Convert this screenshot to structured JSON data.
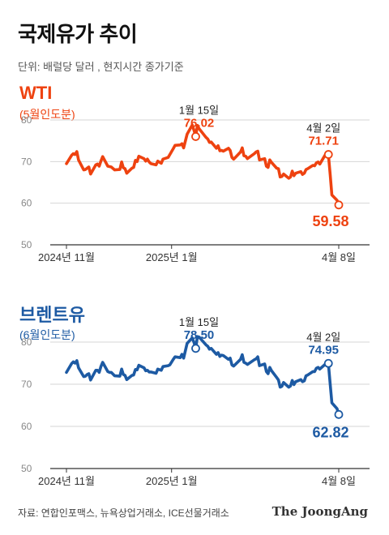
{
  "header": {
    "title": "국제유가 추이",
    "subtitle": "단위: 배럴당 달러 , 현지시간 종가기준"
  },
  "footer": {
    "source": "자료: 연합인포맥스, 뉴욕상업거래소, ICE선물거래소",
    "logo": "The JoongAng"
  },
  "colors": {
    "wti": "#ee4210",
    "brent": "#1d5aa3"
  },
  "chart_data": [
    {
      "type": "line",
      "title": "WTI",
      "subtitle": "(5월인도분)",
      "color": "#ee4210",
      "ylim": [
        50,
        80
      ],
      "yticks": [
        "80",
        "70",
        "60",
        "50"
      ],
      "xticks": [
        "2024년 11월",
        "2025년 1월",
        "4월 8일"
      ],
      "xrange": [
        "2024-11-01",
        "2025-04-08"
      ],
      "series": [
        {
          "x": [
            "2024-11-01",
            "2024-11-04",
            "2024-11-05",
            "2024-11-06",
            "2024-11-07",
            "2024-11-08",
            "2024-11-11",
            "2024-11-12",
            "2024-11-13",
            "2024-11-14",
            "2024-11-15",
            "2024-11-18",
            "2024-11-19",
            "2024-11-20",
            "2024-11-21",
            "2024-11-22",
            "2024-11-25",
            "2024-11-26",
            "2024-11-27",
            "2024-11-29",
            "2024-12-02",
            "2024-12-03",
            "2024-12-04",
            "2024-12-05",
            "2024-12-06",
            "2024-12-09",
            "2024-12-10",
            "2024-12-11",
            "2024-12-12",
            "2024-12-13",
            "2024-12-16",
            "2024-12-17",
            "2024-12-18",
            "2024-12-19",
            "2024-12-20",
            "2024-12-23",
            "2024-12-24",
            "2024-12-26",
            "2024-12-27",
            "2024-12-30",
            "2024-12-31",
            "2025-01-02",
            "2025-01-03",
            "2025-01-06",
            "2025-01-07",
            "2025-01-08",
            "2025-01-10",
            "2025-01-13",
            "2025-01-14",
            "2025-01-15",
            "2025-01-16",
            "2025-01-17",
            "2025-01-21",
            "2025-01-22",
            "2025-01-23",
            "2025-01-24",
            "2025-01-27",
            "2025-01-28",
            "2025-01-29",
            "2025-01-30",
            "2025-01-31",
            "2025-02-03",
            "2025-02-04",
            "2025-02-05",
            "2025-02-06",
            "2025-02-07",
            "2025-02-10",
            "2025-02-11",
            "2025-02-12",
            "2025-02-13",
            "2025-02-14",
            "2025-02-18",
            "2025-02-19",
            "2025-02-20",
            "2025-02-21",
            "2025-02-24",
            "2025-02-25",
            "2025-02-26",
            "2025-02-27",
            "2025-02-28",
            "2025-03-03",
            "2025-03-04",
            "2025-03-05",
            "2025-03-06",
            "2025-03-07",
            "2025-03-10",
            "2025-03-11",
            "2025-03-12",
            "2025-03-13",
            "2025-03-14",
            "2025-03-17",
            "2025-03-18",
            "2025-03-19",
            "2025-03-20",
            "2025-03-21",
            "2025-03-24",
            "2025-03-25",
            "2025-03-26",
            "2025-03-27",
            "2025-03-28",
            "2025-03-31",
            "2025-04-01",
            "2025-04-02",
            "2025-04-03",
            "2025-04-04",
            "2025-04-07",
            "2025-04-08"
          ],
          "values": [
            69.5,
            71.5,
            71.9,
            71.7,
            72.4,
            70.4,
            68.0,
            68.1,
            68.4,
            68.7,
            67.0,
            69.2,
            69.4,
            68.9,
            70.1,
            71.2,
            68.9,
            68.8,
            68.7,
            68.0,
            68.1,
            69.9,
            68.5,
            68.3,
            67.2,
            68.4,
            68.6,
            70.3,
            70.0,
            71.3,
            70.7,
            70.1,
            70.6,
            69.9,
            69.5,
            69.2,
            70.1,
            69.6,
            70.6,
            71.0,
            71.7,
            73.1,
            73.9,
            74.0,
            74.3,
            73.3,
            76.6,
            78.8,
            77.5,
            76.02,
            78.7,
            77.9,
            75.8,
            75.4,
            74.6,
            74.7,
            73.2,
            73.8,
            72.6,
            72.7,
            72.5,
            73.2,
            72.7,
            71.0,
            70.6,
            71.0,
            72.3,
            73.3,
            71.4,
            71.3,
            70.7,
            71.9,
            72.3,
            72.5,
            70.4,
            70.7,
            68.9,
            68.6,
            70.4,
            69.8,
            68.4,
            68.3,
            66.3,
            66.4,
            67.0,
            66.0,
            66.3,
            67.7,
            66.6,
            67.2,
            67.6,
            66.9,
            67.2,
            68.1,
            68.3,
            69.1,
            69.0,
            69.7,
            69.9,
            69.4,
            71.5,
            71.2,
            71.71,
            66.95,
            61.99,
            60.7,
            59.58
          ]
        }
      ],
      "annotations": [
        {
          "date": "1월 15일",
          "value": "76.02"
        },
        {
          "date": "4월 2일",
          "value": "71.71"
        },
        {
          "value": "59.58"
        }
      ]
    },
    {
      "type": "line",
      "title": "브렌트유",
      "subtitle": "(6월인도분)",
      "color": "#1d5aa3",
      "ylim": [
        50,
        80
      ],
      "yticks": [
        "80",
        "70",
        "60",
        "50"
      ],
      "xticks": [
        "2024년 11월",
        "2025년 1월",
        "4월 8일"
      ],
      "xrange": [
        "2024-11-01",
        "2025-04-08"
      ],
      "series": [
        {
          "x": [
            "2024-11-01",
            "2024-11-04",
            "2024-11-05",
            "2024-11-06",
            "2024-11-07",
            "2024-11-08",
            "2024-11-11",
            "2024-11-12",
            "2024-11-13",
            "2024-11-14",
            "2024-11-15",
            "2024-11-18",
            "2024-11-19",
            "2024-11-20",
            "2024-11-21",
            "2024-11-22",
            "2024-11-25",
            "2024-11-26",
            "2024-11-27",
            "2024-11-29",
            "2024-12-02",
            "2024-12-03",
            "2024-12-04",
            "2024-12-05",
            "2024-12-06",
            "2024-12-09",
            "2024-12-10",
            "2024-12-11",
            "2024-12-12",
            "2024-12-13",
            "2024-12-16",
            "2024-12-17",
            "2024-12-18",
            "2024-12-19",
            "2024-12-20",
            "2024-12-23",
            "2024-12-24",
            "2024-12-26",
            "2024-12-27",
            "2024-12-30",
            "2024-12-31",
            "2025-01-02",
            "2025-01-03",
            "2025-01-06",
            "2025-01-07",
            "2025-01-08",
            "2025-01-10",
            "2025-01-13",
            "2025-01-14",
            "2025-01-15",
            "2025-01-16",
            "2025-01-17",
            "2025-01-21",
            "2025-01-22",
            "2025-01-23",
            "2025-01-24",
            "2025-01-27",
            "2025-01-28",
            "2025-01-29",
            "2025-01-30",
            "2025-01-31",
            "2025-02-03",
            "2025-02-04",
            "2025-02-05",
            "2025-02-06",
            "2025-02-07",
            "2025-02-10",
            "2025-02-11",
            "2025-02-12",
            "2025-02-13",
            "2025-02-14",
            "2025-02-18",
            "2025-02-19",
            "2025-02-20",
            "2025-02-21",
            "2025-02-24",
            "2025-02-25",
            "2025-02-26",
            "2025-02-27",
            "2025-02-28",
            "2025-03-03",
            "2025-03-04",
            "2025-03-05",
            "2025-03-06",
            "2025-03-07",
            "2025-03-10",
            "2025-03-11",
            "2025-03-12",
            "2025-03-13",
            "2025-03-14",
            "2025-03-17",
            "2025-03-18",
            "2025-03-19",
            "2025-03-20",
            "2025-03-21",
            "2025-03-24",
            "2025-03-25",
            "2025-03-26",
            "2025-03-27",
            "2025-03-28",
            "2025-03-31",
            "2025-04-01",
            "2025-04-02",
            "2025-04-03",
            "2025-04-04",
            "2025-04-07",
            "2025-04-08"
          ],
          "values": [
            72.8,
            74.9,
            75.3,
            75.0,
            75.6,
            73.9,
            71.8,
            71.9,
            72.3,
            72.5,
            71.0,
            73.3,
            73.3,
            72.8,
            74.2,
            75.2,
            73.0,
            72.8,
            72.8,
            72.0,
            71.9,
            73.6,
            72.3,
            72.1,
            71.1,
            72.1,
            72.2,
            73.5,
            73.4,
            74.5,
            73.9,
            73.2,
            73.3,
            72.9,
            72.9,
            72.6,
            73.6,
            73.3,
            74.2,
            74.4,
            74.6,
            75.9,
            76.5,
            76.3,
            77.1,
            76.2,
            79.7,
            81.0,
            79.9,
            78.5,
            81.3,
            81.2,
            79.3,
            79.0,
            78.3,
            78.5,
            77.1,
            77.5,
            76.6,
            76.9,
            76.8,
            75.9,
            76.2,
            74.6,
            74.3,
            74.7,
            75.9,
            77.0,
            75.2,
            75.0,
            74.7,
            75.8,
            76.0,
            76.5,
            74.4,
            74.8,
            73.0,
            72.5,
            74.0,
            73.2,
            71.6,
            71.0,
            69.3,
            69.5,
            70.4,
            69.3,
            69.6,
            70.9,
            69.9,
            70.6,
            71.1,
            70.6,
            70.8,
            72.0,
            72.2,
            73.0,
            73.0,
            73.8,
            74.0,
            73.6,
            74.7,
            74.5,
            74.95,
            70.1,
            65.6,
            64.2,
            62.82
          ]
        }
      ],
      "annotations": [
        {
          "date": "1월 15일",
          "value": "78.50"
        },
        {
          "date": "4월 2일",
          "value": "74.95"
        },
        {
          "value": "62.82"
        }
      ]
    }
  ]
}
